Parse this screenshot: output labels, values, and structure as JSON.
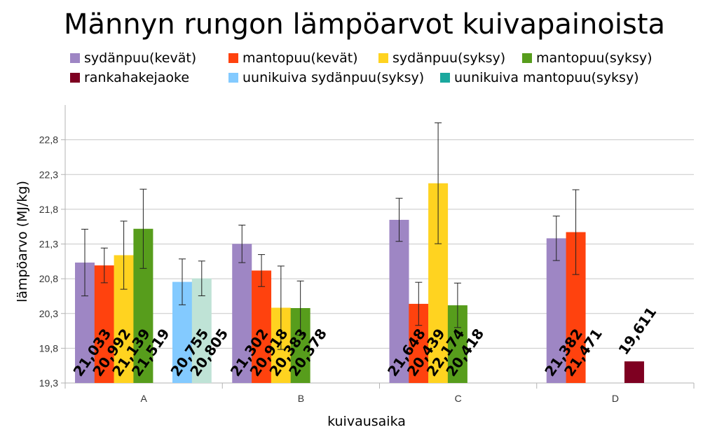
{
  "chart_data": {
    "type": "bar",
    "title": "Männyn rungon lämpöarvot kuivapainoista",
    "xlabel": "kuivausaika",
    "ylabel": "lämpöarvo (MJ/kg)",
    "categories": [
      "A",
      "B",
      "C",
      "D"
    ],
    "ylim": [
      19.3,
      23.3
    ],
    "yticks": [
      "19,3",
      "19,8",
      "20,3",
      "20,8",
      "21,3",
      "21,8",
      "22,3",
      "22,8"
    ],
    "ytick_values": [
      19.3,
      19.8,
      20.3,
      20.8,
      21.3,
      21.8,
      22.3,
      22.8
    ],
    "grid": true,
    "legend_position": "top",
    "series": [
      {
        "name": "sydänpuu(kevät)",
        "color": "#9e86c4",
        "values": [
          21.033,
          21.302,
          21.648,
          21.382
        ],
        "labels": [
          "21,033",
          "21,302",
          "21,648",
          "21,382"
        ],
        "err": [
          0.48,
          0.27,
          0.31,
          0.32
        ]
      },
      {
        "name": "mantopuu(kevät)",
        "color": "#ff420e",
        "values": [
          20.992,
          20.918,
          20.439,
          21.471
        ],
        "labels": [
          "20,992",
          "20,918",
          "20,439",
          "21,471"
        ],
        "err": [
          0.25,
          0.23,
          0.31,
          0.61
        ]
      },
      {
        "name": "sydänpuu(syksy)",
        "color": "#ffd320",
        "values": [
          21.139,
          20.383,
          22.174,
          null
        ],
        "labels": [
          "21,139",
          "20,383",
          "22,174",
          null
        ],
        "err": [
          0.49,
          0.6,
          0.87,
          null
        ]
      },
      {
        "name": "mantopuu(syksy)",
        "color": "#579d1c",
        "values": [
          21.519,
          20.378,
          20.418,
          null
        ],
        "labels": [
          "21,519",
          "20,378",
          "20,418",
          null
        ],
        "err": [
          0.57,
          0.39,
          0.32,
          null
        ]
      },
      {
        "name": "rankahakejaoke",
        "color": "#7e0021",
        "values": [
          null,
          null,
          null,
          19.611
        ],
        "labels": [
          null,
          null,
          null,
          "19,611"
        ],
        "err": [
          null,
          null,
          null,
          null
        ]
      },
      {
        "name": "uunikuiva sydänpuu(syksy)",
        "color": "#83caff",
        "values": [
          20.755,
          null,
          null,
          null
        ],
        "labels": [
          "20,755",
          null,
          null,
          null
        ],
        "err": [
          0.33,
          null,
          null,
          null
        ]
      },
      {
        "name": "uunikuiva mantopuu(syksy)",
        "color": "#1aa89e",
        "bar_color": "#bfe3d6",
        "values": [
          20.805,
          null,
          null,
          null
        ],
        "labels": [
          "20,805",
          null,
          null,
          null
        ],
        "err": [
          0.25,
          null,
          null,
          null
        ]
      }
    ]
  }
}
